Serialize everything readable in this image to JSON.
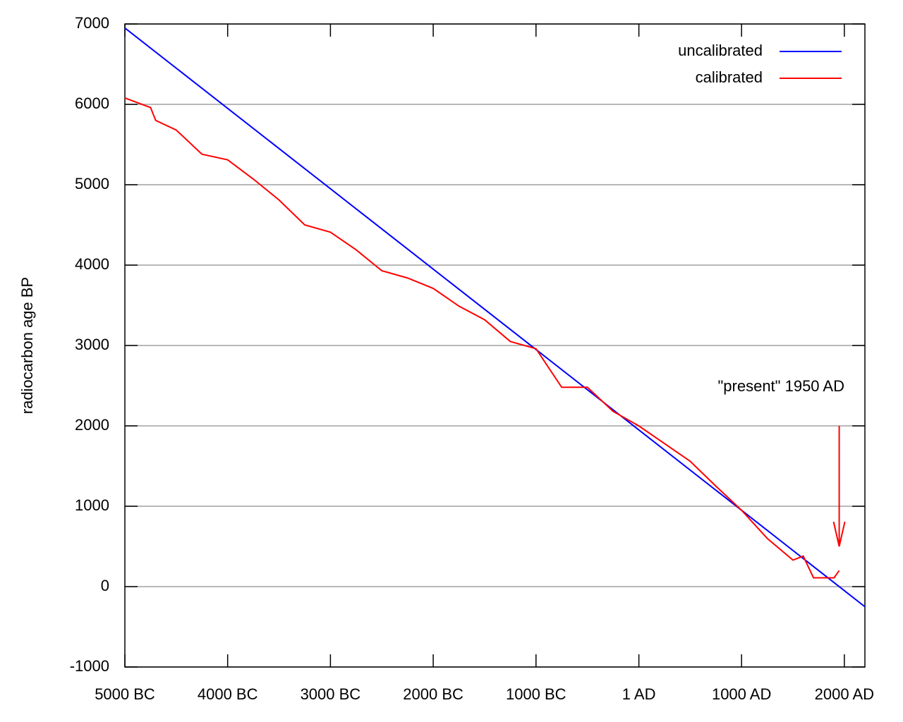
{
  "chart_data": {
    "type": "line",
    "ylabel": "radiocarbon age BP",
    "xlim": [
      -5000,
      2200
    ],
    "ylim": [
      -1000,
      7000
    ],
    "xticks": [
      {
        "value": -5000,
        "label": "5000 BC"
      },
      {
        "value": -4000,
        "label": "4000 BC"
      },
      {
        "value": -3000,
        "label": "3000 BC"
      },
      {
        "value": -2000,
        "label": "2000 BC"
      },
      {
        "value": -1000,
        "label": "1000 BC"
      },
      {
        "value": 1,
        "label": "1 AD"
      },
      {
        "value": 1000,
        "label": "1000 AD"
      },
      {
        "value": 2000,
        "label": "2000 AD"
      }
    ],
    "yticks": [
      -1000,
      0,
      1000,
      2000,
      3000,
      4000,
      5000,
      6000,
      7000
    ],
    "grid": true,
    "legend": "upper right",
    "series": [
      {
        "name": "uncalibrated",
        "color": "#0000ff",
        "x": [
          -5000,
          -4000,
          -3000,
          -2000,
          -1000,
          0,
          1000,
          2000,
          2200
        ],
        "values": [
          6950,
          5950,
          4950,
          3950,
          2950,
          1950,
          950,
          -50,
          -250
        ]
      },
      {
        "name": "calibrated",
        "color": "#ff0000",
        "x": [
          -5000,
          -4750,
          -4700,
          -4500,
          -4250,
          -4000,
          -3750,
          -3500,
          -3250,
          -3000,
          -2750,
          -2500,
          -2250,
          -2000,
          -1750,
          -1500,
          -1250,
          -1000,
          -750,
          -500,
          -250,
          0,
          250,
          500,
          750,
          1000,
          1250,
          1500,
          1600,
          1700,
          1900,
          1950
        ],
        "values": [
          6080,
          5960,
          5800,
          5680,
          5380,
          5310,
          5070,
          4810,
          4500,
          4410,
          4190,
          3930,
          3840,
          3710,
          3490,
          3320,
          3050,
          2960,
          2480,
          2480,
          2180,
          2000,
          1780,
          1560,
          1250,
          950,
          600,
          330,
          380,
          110,
          110,
          200
        ]
      }
    ],
    "annotation": {
      "text": "\"present\" 1950 AD",
      "x": 1950,
      "y_start": 2000,
      "y_end": 500,
      "color": "#ff0000"
    }
  }
}
